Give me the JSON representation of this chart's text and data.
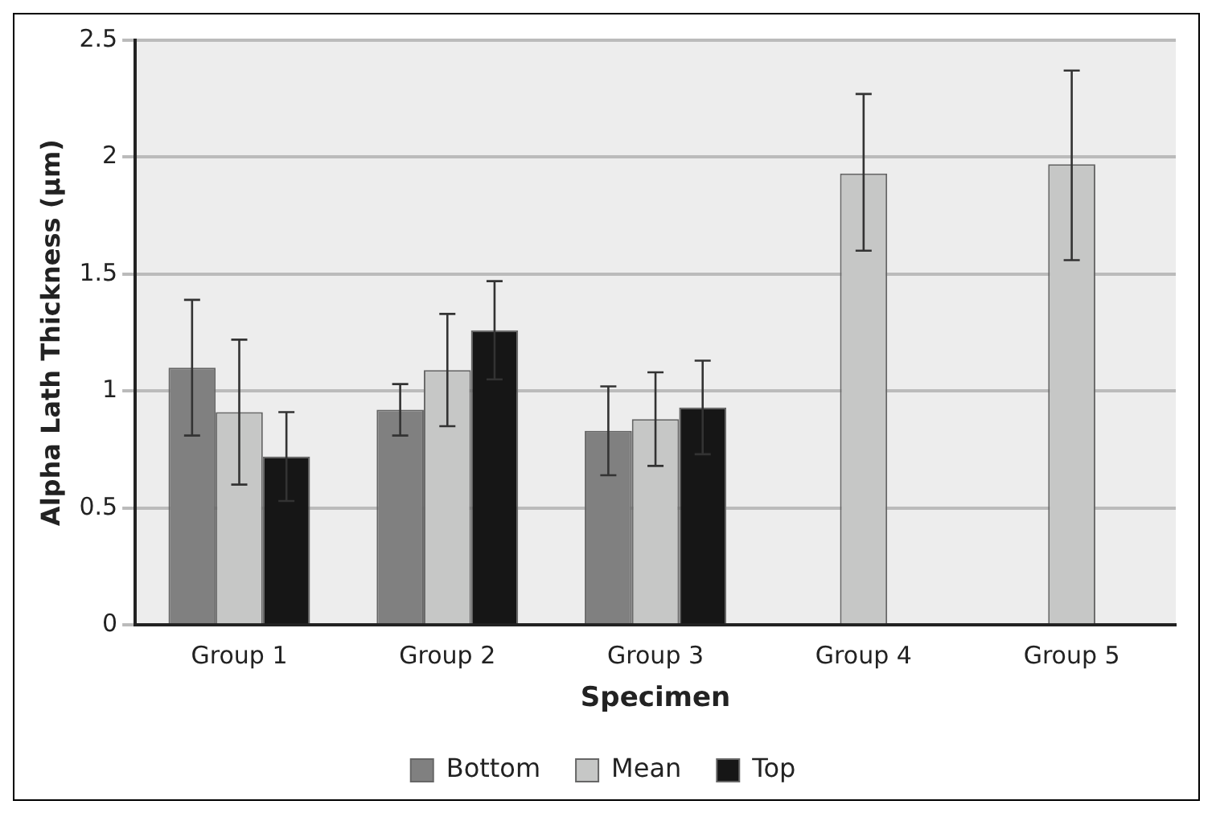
{
  "chart_data": {
    "type": "bar",
    "xlabel": "Specimen",
    "ylabel": "Alpha Lath Thickness (µm)",
    "categories": [
      "Group 1",
      "Group 2",
      "Group 3",
      "Group 4",
      "Group 5"
    ],
    "series": [
      {
        "name": "Bottom",
        "color": "#808080",
        "values": [
          1.1,
          0.92,
          0.83,
          null,
          null
        ],
        "errors": [
          [
            0.81,
            1.39
          ],
          [
            0.81,
            1.03
          ],
          [
            0.64,
            1.02
          ],
          null,
          null
        ]
      },
      {
        "name": "Mean",
        "color": "#c6c7c6",
        "values": [
          0.91,
          1.09,
          0.88,
          1.93,
          1.97
        ],
        "errors": [
          [
            0.6,
            1.22
          ],
          [
            0.85,
            1.33
          ],
          [
            0.68,
            1.08
          ],
          [
            1.6,
            2.27
          ],
          [
            1.56,
            2.37
          ]
        ]
      },
      {
        "name": "Top",
        "color": "#161616",
        "values": [
          0.72,
          1.26,
          0.93,
          null,
          null
        ],
        "errors": [
          [
            0.53,
            0.91
          ],
          [
            1.05,
            1.47
          ],
          [
            0.73,
            1.13
          ],
          null,
          null
        ]
      }
    ],
    "ylim": [
      0,
      2.5
    ],
    "yticks": [
      0,
      0.5,
      1,
      1.5,
      2,
      2.5
    ],
    "grid": "y",
    "legend": "bottom"
  }
}
